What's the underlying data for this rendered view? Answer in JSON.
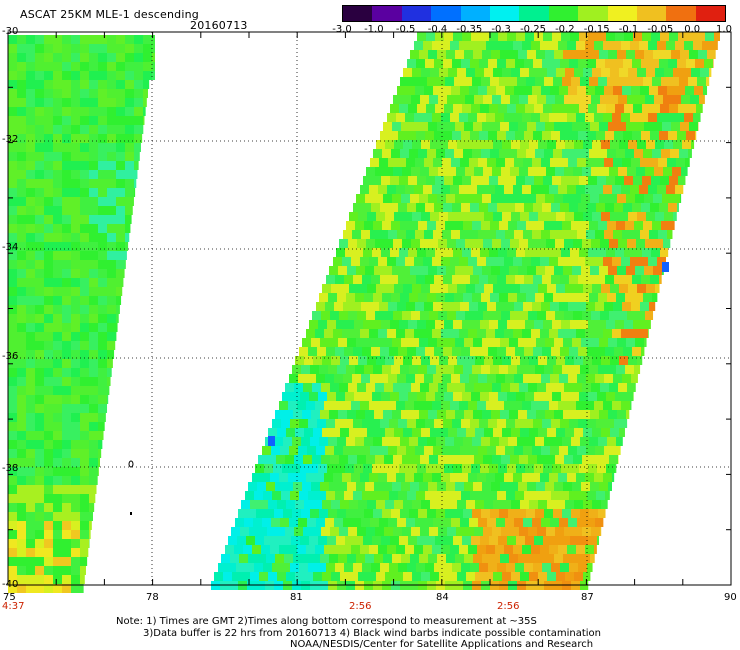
{
  "header": {
    "title": "ASCAT 25KM MLE-1 descending",
    "date": "20160713"
  },
  "colorbar": {
    "labels": [
      "-3.0",
      "-1.0",
      "-0.5",
      "-0.4",
      "-0.35",
      "-0.3",
      "-0.25",
      "-0.2",
      "-0.15",
      "-0.1",
      "-0.05",
      "0.0",
      "1.0"
    ],
    "colors": [
      "#2a0040",
      "#5a00a0",
      "#2030e0",
      "#0070ff",
      "#00b0ff",
      "#00f0f0",
      "#00f090",
      "#30f030",
      "#a0f020",
      "#f0f020",
      "#f0c020",
      "#f07010",
      "#e02010"
    ]
  },
  "axes": {
    "lat_labels": [
      "-30",
      "-32",
      "-34",
      "-36",
      "-38",
      "-40"
    ],
    "lon_labels": [
      "75",
      "78",
      "81",
      "84",
      "87",
      "90"
    ]
  },
  "times": {
    "left": "4:37",
    "mid": "2:56",
    "right": "2:56"
  },
  "notes": {
    "line1": "Note: 1) Times are GMT 2)Times along bottom correspond to measurement at ~35S",
    "line2": "3)Data buffer is 22 hrs from 20160713 4) Black wind barbs indicate possible contamination",
    "line3": "NOAA/NESDIS/Center for Satellite Applications and Research"
  }
}
